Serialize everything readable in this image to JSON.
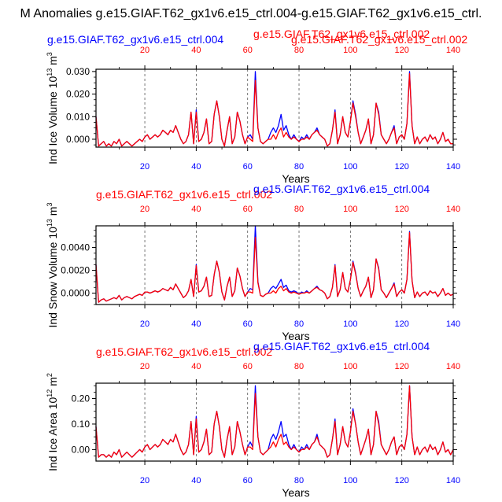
{
  "figure": {
    "title": "M Anomalies g.e15.GIAF.T62_gx1v6.e15_ctrl.004-g.e15.GIAF.T62_gx1v6.e15_ctrl."
  },
  "colors": {
    "ctrl004": "#0000ff",
    "ctrl002": "#ff0000",
    "axis": "#000000",
    "grid": "#555555"
  },
  "chart_data": [
    {
      "type": "line",
      "ylabel_main": "Ind Ice Volume 10",
      "ylabel_sup": "13",
      "ylabel_unit": " m",
      "ylabel_unit_sup": "3",
      "xlabel": "Years",
      "top_left_label": "g.e15.GIAF.T62_gx1v6.e15_ctrl.004",
      "top_mid_label": "g.e15.GIAF.T62_gx1v6.e15_ctrl.002",
      "top_right_label": "g.e15.GIAF.T62_gx1v6.e15_ctrl.002",
      "yticks": [
        "0.030",
        "0.020",
        "0.010",
        "0.000"
      ],
      "ytick_values": [
        0.03,
        0.02,
        0.01,
        0.0
      ],
      "ylim": [
        -0.0035,
        0.031
      ],
      "xlim": [
        1,
        140
      ],
      "xticks": [
        "20",
        "40",
        "60",
        "80",
        "100",
        "120",
        "140"
      ],
      "xtick_values": [
        20,
        40,
        60,
        80,
        100,
        120,
        140
      ],
      "top_tick_color_mode": "red",
      "bottom_tick_color": "blue",
      "series": [
        {
          "name": "g.e15.GIAF.T62_gx1v6.e15_ctrl.004",
          "color": "#0000ff",
          "values": [
            0.01,
            -0.003,
            -0.002,
            -0.001,
            -0.003,
            -0.002,
            -0.003,
            -0.001,
            -0.002,
            0.0,
            -0.003,
            -0.002,
            -0.001,
            -0.002,
            -0.003,
            -0.002,
            -0.001,
            0.0,
            -0.001,
            0.001,
            0.002,
            0.0,
            0.001,
            0.002,
            0.001,
            0.002,
            0.004,
            0.003,
            0.002,
            0.004,
            0.003,
            0.006,
            0.003,
            0.0,
            -0.002,
            -0.001,
            0.002,
            0.012,
            -0.002,
            0.013,
            -0.001,
            0.0,
            0.003,
            0.009,
            -0.002,
            -0.001,
            0.011,
            0.017,
            0.01,
            0.0,
            -0.003,
            0.004,
            0.01,
            -0.002,
            0.001,
            0.012,
            0.008,
            0.002,
            -0.002,
            0.001,
            0.002,
            0.0,
            0.03,
            0.005,
            -0.001,
            -0.002,
            -0.001,
            0.0,
            0.003,
            0.005,
            0.003,
            0.006,
            0.011,
            0.004,
            0.006,
            0.002,
            0.0,
            0.002,
            0.0,
            -0.001,
            0.001,
            0.0,
            0.002,
            0.0,
            0.002,
            0.003,
            0.005,
            0.002,
            0.001,
            0.0,
            -0.003,
            -0.002,
            0.004,
            0.013,
            -0.002,
            0.002,
            0.01,
            0.003,
            0.001,
            0.008,
            0.017,
            0.011,
            0.003,
            -0.002,
            0.001,
            0.004,
            0.009,
            -0.002,
            0.002,
            0.016,
            0.012,
            0.002,
            0.0,
            -0.002,
            0.0,
            0.003,
            0.006,
            -0.002,
            0.001,
            0.002,
            0.0,
            0.007,
            0.03,
            0.006,
            -0.002,
            0.001,
            -0.002,
            0.0,
            0.001,
            -0.001,
            0.002,
            0.0,
            0.001,
            -0.002,
            0.0,
            0.003,
            -0.001,
            0.0,
            -0.002,
            -0.002
          ]
        },
        {
          "name": "g.e15.GIAF.T62_gx1v6.e15_ctrl.002",
          "color": "#ff0000",
          "values": [
            0.01,
            -0.003,
            -0.002,
            -0.001,
            -0.003,
            -0.002,
            -0.003,
            -0.001,
            -0.002,
            0.0,
            -0.003,
            -0.002,
            -0.001,
            -0.002,
            -0.003,
            -0.002,
            -0.001,
            0.0,
            -0.001,
            0.001,
            0.002,
            0.0,
            0.001,
            0.002,
            0.001,
            0.002,
            0.004,
            0.003,
            0.002,
            0.004,
            0.003,
            0.006,
            0.003,
            0.0,
            -0.002,
            -0.001,
            0.002,
            0.012,
            -0.002,
            0.012,
            -0.001,
            0.0,
            0.003,
            0.009,
            -0.002,
            -0.001,
            0.011,
            0.017,
            0.01,
            0.0,
            -0.003,
            0.004,
            0.01,
            -0.002,
            0.001,
            0.012,
            0.008,
            0.002,
            -0.002,
            0.001,
            0.0,
            -0.001,
            0.026,
            0.005,
            -0.001,
            -0.002,
            -0.001,
            0.0,
            0.0,
            0.002,
            0.0,
            0.003,
            0.005,
            0.001,
            0.003,
            0.001,
            0.0,
            0.001,
            0.0,
            -0.001,
            0.0,
            0.0,
            0.001,
            0.0,
            0.002,
            0.003,
            0.004,
            0.002,
            0.001,
            0.0,
            -0.003,
            -0.002,
            0.004,
            0.012,
            -0.002,
            0.002,
            0.01,
            0.003,
            0.001,
            0.008,
            0.016,
            0.01,
            0.003,
            -0.002,
            0.001,
            0.004,
            0.009,
            -0.002,
            0.002,
            0.016,
            0.011,
            0.002,
            0.0,
            -0.002,
            0.0,
            0.003,
            0.005,
            -0.002,
            0.001,
            0.002,
            0.0,
            0.007,
            0.029,
            0.006,
            -0.002,
            0.001,
            -0.002,
            0.0,
            0.001,
            -0.001,
            0.002,
            0.0,
            0.001,
            -0.002,
            0.0,
            0.003,
            -0.001,
            0.0,
            -0.002,
            -0.002
          ]
        }
      ]
    },
    {
      "type": "line",
      "ylabel_main": "Ind Snow Volume 10",
      "ylabel_sup": "13",
      "ylabel_unit": " m",
      "ylabel_unit_sup": "3",
      "xlabel": "Years",
      "top_left_label": "g.e15.GIAF.T62_gx1v6.e15_ctrl.002",
      "top_mid_label": "g.e15.GIAF.T62_gx1v6.e15_ctrl.004",
      "top_right_label": "",
      "yticks": [
        "0.0040",
        "0.0020",
        "0.0000"
      ],
      "ytick_values": [
        0.004,
        0.002,
        0.0
      ],
      "ylim": [
        -0.001,
        0.0059
      ],
      "xlim": [
        1,
        140
      ],
      "xticks": [
        "20",
        "40",
        "60",
        "80",
        "100",
        "120",
        "140"
      ],
      "xtick_values": [
        20,
        40,
        60,
        80,
        100,
        120,
        140
      ],
      "top_tick_color_mode": "red",
      "bottom_tick_color": "blue",
      "series": [
        {
          "name": "g.e15.GIAF.T62_gx1v6.e15_ctrl.004",
          "color": "#0000ff",
          "values": [
            0.0025,
            -0.0008,
            -0.0006,
            -0.0005,
            -0.0007,
            -0.0006,
            -0.0005,
            -0.0004,
            -0.0005,
            -0.0002,
            -0.0006,
            -0.0004,
            -0.0003,
            -0.0004,
            -0.0005,
            -0.0003,
            -0.0002,
            -0.0001,
            -0.0002,
            0.0001,
            0.0001,
            0.0,
            0.0001,
            0.0002,
            0.0001,
            0.0002,
            0.0004,
            0.0003,
            0.0002,
            0.0005,
            0.0003,
            0.0008,
            0.0004,
            0.0,
            -0.0004,
            -0.0002,
            0.0002,
            0.0012,
            -0.0003,
            0.0025,
            0.0001,
            0.0002,
            0.0006,
            0.0014,
            -0.0003,
            -0.0002,
            0.0016,
            0.0028,
            0.0018,
            0.0001,
            -0.0006,
            0.0006,
            0.0014,
            -0.0003,
            0.0002,
            0.0022,
            0.0015,
            0.0004,
            -0.0003,
            0.0001,
            0.0004,
            0.0003,
            0.0059,
            0.001,
            -0.0002,
            -0.0003,
            -0.0001,
            0.0,
            0.0004,
            0.0006,
            0.0004,
            0.0008,
            0.0012,
            0.0005,
            0.0007,
            0.0002,
            0.0001,
            0.0002,
            0.0001,
            -0.0001,
            0.0001,
            0.0,
            0.0002,
            0.0,
            0.0002,
            0.0004,
            0.0006,
            0.0003,
            0.0002,
            0.0,
            -0.0005,
            -0.0003,
            0.0005,
            0.0025,
            -0.0003,
            0.0003,
            0.0018,
            0.0004,
            0.0001,
            0.0012,
            0.0028,
            0.0018,
            0.0004,
            -0.0003,
            0.0002,
            0.0006,
            0.0014,
            -0.0004,
            0.0003,
            0.003,
            0.0022,
            0.0003,
            0.0,
            -0.0004,
            0.0,
            0.0004,
            0.0009,
            -0.0003,
            0.0001,
            0.0003,
            0.0,
            0.0012,
            0.0054,
            0.0011,
            -0.0004,
            0.0001,
            -0.0003,
            0.0,
            0.0001,
            -0.0002,
            0.0002,
            0.0,
            0.0001,
            -0.0003,
            0.0,
            0.0004,
            -0.0002,
            0.0,
            -0.0002,
            -0.0001
          ]
        },
        {
          "name": "g.e15.GIAF.T62_gx1v6.e15_ctrl.002",
          "color": "#ff0000",
          "values": [
            0.0025,
            -0.0008,
            -0.0006,
            -0.0005,
            -0.0007,
            -0.0006,
            -0.0005,
            -0.0004,
            -0.0005,
            -0.0002,
            -0.0006,
            -0.0004,
            -0.0003,
            -0.0004,
            -0.0005,
            -0.0003,
            -0.0002,
            -0.0001,
            -0.0002,
            0.0001,
            0.0001,
            0.0,
            0.0001,
            0.0002,
            0.0001,
            0.0002,
            0.0004,
            0.0003,
            0.0002,
            0.0005,
            0.0003,
            0.0008,
            0.0004,
            0.0,
            -0.0004,
            -0.0002,
            0.0002,
            0.0012,
            -0.0003,
            0.0024,
            0.0001,
            0.0002,
            0.0006,
            0.0014,
            -0.0003,
            -0.0002,
            0.0016,
            0.0028,
            0.0018,
            0.0001,
            -0.0006,
            0.0006,
            0.0014,
            -0.0003,
            0.0002,
            0.0022,
            0.0015,
            0.0004,
            -0.0003,
            0.0001,
            0.0001,
            0.0,
            0.0049,
            0.0009,
            -0.0002,
            -0.0003,
            -0.0001,
            0.0,
            0.0,
            0.0002,
            0.0,
            0.0004,
            0.0006,
            0.0002,
            0.0004,
            0.0001,
            0.0,
            0.0001,
            0.0,
            -0.0001,
            0.0,
            0.0,
            0.0001,
            0.0,
            0.0002,
            0.0004,
            0.0005,
            0.0003,
            0.0002,
            0.0,
            -0.0005,
            -0.0003,
            0.0005,
            0.0024,
            -0.0003,
            0.0003,
            0.0018,
            0.0004,
            0.0001,
            0.0012,
            0.0027,
            0.0017,
            0.0004,
            -0.0003,
            0.0002,
            0.0006,
            0.0014,
            -0.0004,
            0.0003,
            0.003,
            0.0021,
            0.0003,
            0.0,
            -0.0004,
            0.0,
            0.0004,
            0.0008,
            -0.0003,
            0.0001,
            0.0003,
            0.0,
            0.0012,
            0.0053,
            0.0011,
            -0.0004,
            0.0001,
            -0.0003,
            0.0,
            0.0001,
            -0.0002,
            0.0002,
            0.0,
            0.0001,
            -0.0003,
            0.0,
            0.0004,
            -0.0002,
            0.0,
            -0.0002,
            -0.0001
          ]
        }
      ]
    },
    {
      "type": "line",
      "ylabel_main": "Ind Ice Area 10",
      "ylabel_sup": "12",
      "ylabel_unit": " m",
      "ylabel_unit_sup": "2",
      "xlabel": "Years",
      "top_left_label": "g.e15.GIAF.T62_gx1v6.e15_ctrl.002",
      "top_mid_label": "g.e15.GIAF.T62_gx1v6.e15_ctrl.004",
      "top_right_label": "",
      "yticks": [
        "0.20",
        "0.10",
        "0.00"
      ],
      "ytick_values": [
        0.2,
        0.1,
        0.0
      ],
      "ylim": [
        -0.045,
        0.26
      ],
      "xlim": [
        1,
        140
      ],
      "xticks": [
        "20",
        "40",
        "60",
        "80",
        "100",
        "120",
        "140"
      ],
      "xtick_values": [
        20,
        40,
        60,
        80,
        100,
        120,
        140
      ],
      "top_tick_color_mode": "red",
      "bottom_tick_color": "blue",
      "series": [
        {
          "name": "g.e15.GIAF.T62_gx1v6.e15_ctrl.004",
          "color": "#0000ff",
          "values": [
            0.09,
            -0.03,
            -0.02,
            -0.02,
            -0.03,
            -0.02,
            -0.03,
            -0.01,
            -0.02,
            0.0,
            -0.03,
            -0.02,
            -0.01,
            -0.02,
            -0.03,
            -0.02,
            -0.01,
            0.0,
            -0.01,
            0.01,
            0.02,
            0.0,
            0.01,
            0.02,
            0.01,
            0.02,
            0.04,
            0.03,
            0.02,
            0.04,
            0.03,
            0.06,
            0.03,
            0.0,
            -0.02,
            -0.01,
            0.02,
            0.11,
            -0.02,
            0.13,
            -0.01,
            0.0,
            0.03,
            0.08,
            -0.02,
            -0.01,
            0.1,
            0.15,
            0.09,
            0.0,
            -0.03,
            0.04,
            0.09,
            -0.02,
            0.01,
            0.11,
            0.07,
            0.02,
            -0.02,
            0.01,
            0.03,
            0.01,
            0.25,
            0.05,
            -0.01,
            -0.02,
            -0.01,
            0.0,
            0.04,
            0.06,
            0.04,
            0.07,
            0.11,
            0.05,
            0.06,
            0.02,
            0.0,
            0.02,
            0.0,
            -0.01,
            0.01,
            0.0,
            0.02,
            0.0,
            0.02,
            0.03,
            0.06,
            0.02,
            0.01,
            0.0,
            -0.03,
            -0.02,
            0.04,
            0.12,
            -0.02,
            0.02,
            0.09,
            0.03,
            0.01,
            0.07,
            0.16,
            0.1,
            0.03,
            -0.02,
            0.01,
            0.04,
            0.08,
            -0.02,
            0.02,
            0.15,
            0.11,
            0.02,
            0.0,
            -0.02,
            0.0,
            0.03,
            0.05,
            -0.02,
            0.01,
            0.02,
            0.0,
            0.06,
            0.25,
            0.05,
            -0.02,
            0.01,
            -0.02,
            0.0,
            0.01,
            -0.01,
            0.02,
            0.0,
            0.01,
            -0.02,
            0.0,
            0.03,
            -0.01,
            0.0,
            -0.02,
            0.0
          ]
        },
        {
          "name": "g.e15.GIAF.T62_gx1v6.e15_ctrl.002",
          "color": "#ff0000",
          "values": [
            0.09,
            -0.03,
            -0.02,
            -0.02,
            -0.03,
            -0.02,
            -0.03,
            -0.01,
            -0.02,
            0.0,
            -0.03,
            -0.02,
            -0.01,
            -0.02,
            -0.03,
            -0.02,
            -0.01,
            0.0,
            -0.01,
            0.01,
            0.02,
            0.0,
            0.01,
            0.02,
            0.01,
            0.02,
            0.04,
            0.03,
            0.02,
            0.04,
            0.03,
            0.06,
            0.03,
            0.0,
            -0.02,
            -0.01,
            0.02,
            0.11,
            -0.02,
            0.12,
            -0.01,
            0.0,
            0.03,
            0.08,
            -0.02,
            -0.01,
            0.1,
            0.15,
            0.09,
            0.0,
            -0.03,
            0.04,
            0.09,
            -0.02,
            0.01,
            0.11,
            0.07,
            0.02,
            -0.02,
            0.01,
            0.01,
            0.0,
            0.22,
            0.05,
            -0.01,
            -0.02,
            -0.01,
            0.0,
            0.01,
            0.03,
            0.01,
            0.04,
            0.06,
            0.02,
            0.03,
            0.01,
            0.0,
            0.01,
            0.0,
            -0.01,
            0.0,
            0.0,
            0.01,
            0.0,
            0.02,
            0.03,
            0.05,
            0.02,
            0.01,
            0.0,
            -0.03,
            -0.02,
            0.04,
            0.11,
            -0.02,
            0.02,
            0.09,
            0.03,
            0.01,
            0.07,
            0.15,
            0.1,
            0.03,
            -0.02,
            0.01,
            0.04,
            0.08,
            -0.02,
            0.02,
            0.15,
            0.1,
            0.02,
            0.0,
            -0.02,
            0.0,
            0.03,
            0.05,
            -0.02,
            0.01,
            0.02,
            0.0,
            0.06,
            0.25,
            0.05,
            -0.02,
            0.01,
            -0.02,
            0.0,
            0.01,
            -0.01,
            0.02,
            0.0,
            0.01,
            -0.02,
            0.0,
            0.03,
            -0.01,
            0.0,
            -0.02,
            0.0
          ]
        }
      ]
    }
  ]
}
